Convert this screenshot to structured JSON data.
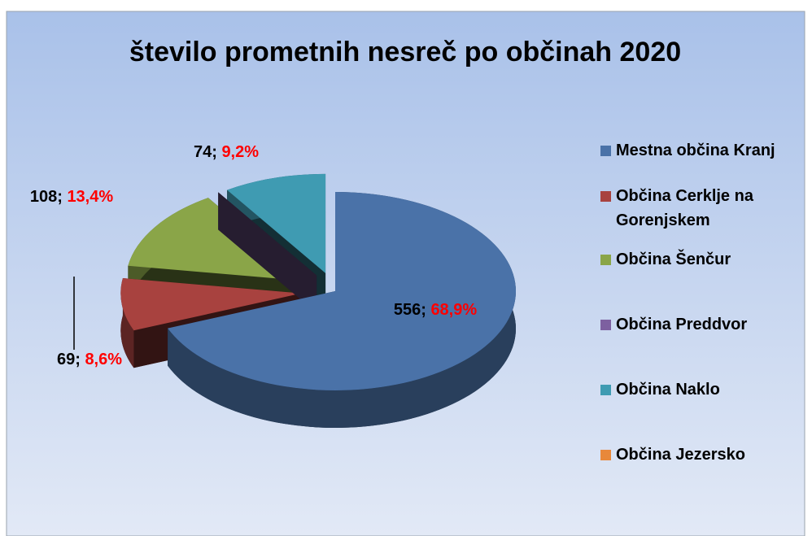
{
  "chart_data": {
    "type": "pie3d",
    "title": "število prometnih nesreč po občinah 2020",
    "categories": [
      "Mestna občina Kranj",
      "Občina Cerklje na Gorenjskem",
      "Občina Šenčur",
      "Občina Preddvor",
      "Občina Naklo",
      "Občina Jezersko"
    ],
    "values": [
      556,
      69,
      108,
      0,
      74,
      0
    ],
    "percent_labels": [
      "68,9%",
      "8,6%",
      "13,4%",
      null,
      "9,2%",
      null
    ],
    "label_separator": "; ",
    "colors": [
      "#4a72a8",
      "#a8423f",
      "#8aa548",
      "#7d60a0",
      "#3f9bb2",
      "#e8883a"
    ],
    "legend": "right"
  }
}
